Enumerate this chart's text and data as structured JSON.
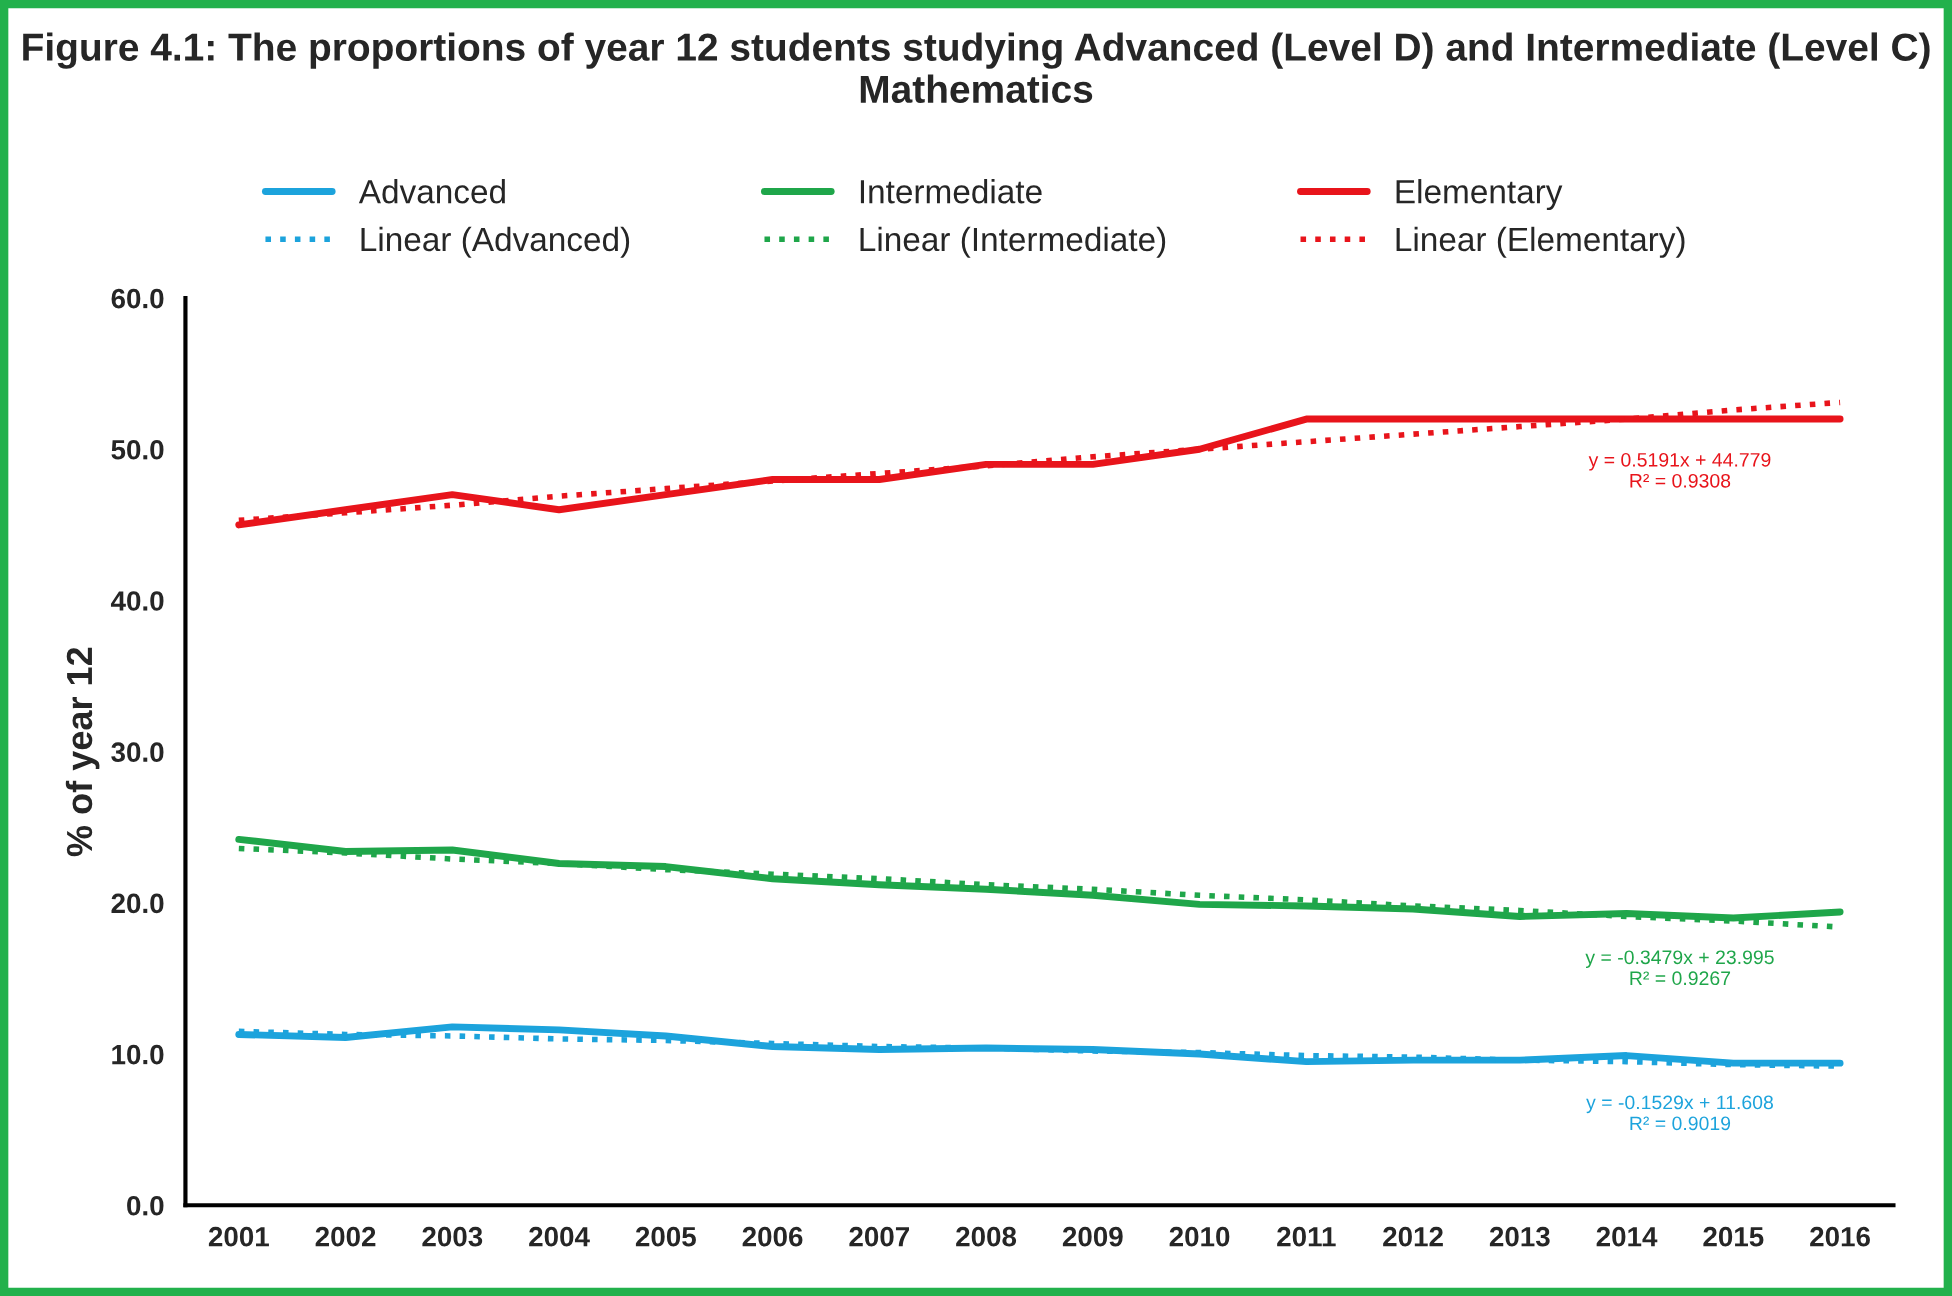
{
  "chart_data": {
    "type": "line",
    "title": "Figure 4.1: The proportions of year 12 students studying Advanced (Level D) and Intermediate (Level C) Mathematics",
    "ylabel": "% of year 12",
    "categories": [
      "2001",
      "2002",
      "2003",
      "2004",
      "2005",
      "2006",
      "2007",
      "2008",
      "2009",
      "2010",
      "2011",
      "2012",
      "2013",
      "2014",
      "2015",
      "2016"
    ],
    "ylim": [
      0,
      60
    ],
    "yticks": [
      {
        "value": 0,
        "label": "0.0"
      },
      {
        "value": 10,
        "label": "10.0"
      },
      {
        "value": 20,
        "label": "20.0"
      },
      {
        "value": 30,
        "label": "30.0"
      },
      {
        "value": 40,
        "label": "40.0"
      },
      {
        "value": 50,
        "label": "50.0"
      },
      {
        "value": 60,
        "label": "60.0"
      }
    ],
    "grid": false,
    "legend": "top",
    "marker": "none",
    "series": [
      {
        "name": "Advanced",
        "color": "#1ca3dc",
        "line_style": "solid",
        "values": [
          11.3,
          11.1,
          11.8,
          11.6,
          11.2,
          10.5,
          10.3,
          10.4,
          10.3,
          10.0,
          9.5,
          9.6,
          9.6,
          9.9,
          9.4,
          9.4
        ]
      },
      {
        "name": "Intermediate",
        "color": "#1fa64a",
        "line_style": "solid",
        "values": [
          24.2,
          23.4,
          23.5,
          22.6,
          22.4,
          21.6,
          21.2,
          20.9,
          20.5,
          19.9,
          19.8,
          19.6,
          19.1,
          19.3,
          19.0,
          19.4
        ]
      },
      {
        "name": "Elementary",
        "color": "#e8141b",
        "line_style": "solid",
        "values": [
          45.0,
          46.0,
          47.0,
          46.0,
          47.0,
          48.0,
          48.0,
          49.0,
          49.0,
          50.0,
          52.0,
          52.0,
          52.0,
          52.0,
          52.0,
          52.0
        ]
      },
      {
        "name": "Linear (Advanced)",
        "color": "#1ca3dc",
        "line_style": "dotted",
        "values": [
          11.5,
          11.3,
          11.2,
          11.0,
          10.9,
          10.7,
          10.5,
          10.4,
          10.2,
          10.1,
          9.9,
          9.8,
          9.6,
          9.5,
          9.3,
          9.2
        ]
      },
      {
        "name": "Linear (Intermediate)",
        "color": "#1fa64a",
        "line_style": "dotted",
        "values": [
          23.6,
          23.3,
          22.9,
          22.6,
          22.2,
          21.9,
          21.6,
          21.2,
          20.9,
          20.5,
          20.2,
          19.8,
          19.5,
          19.1,
          18.8,
          18.4
        ]
      },
      {
        "name": "Linear (Elementary)",
        "color": "#e8141b",
        "line_style": "dotted",
        "values": [
          45.3,
          45.8,
          46.3,
          46.9,
          47.4,
          47.9,
          48.4,
          48.9,
          49.5,
          50.0,
          50.5,
          51.0,
          51.5,
          52.0,
          52.6,
          53.1
        ]
      }
    ],
    "annotations": [
      "y = -0.1529x + 11.608\nR² = 0.9019",
      "y = -0.3479x + 23.995\nR² = 0.9267",
      "y = 0.5191x + 44.779\nR² = 0.9308"
    ]
  }
}
